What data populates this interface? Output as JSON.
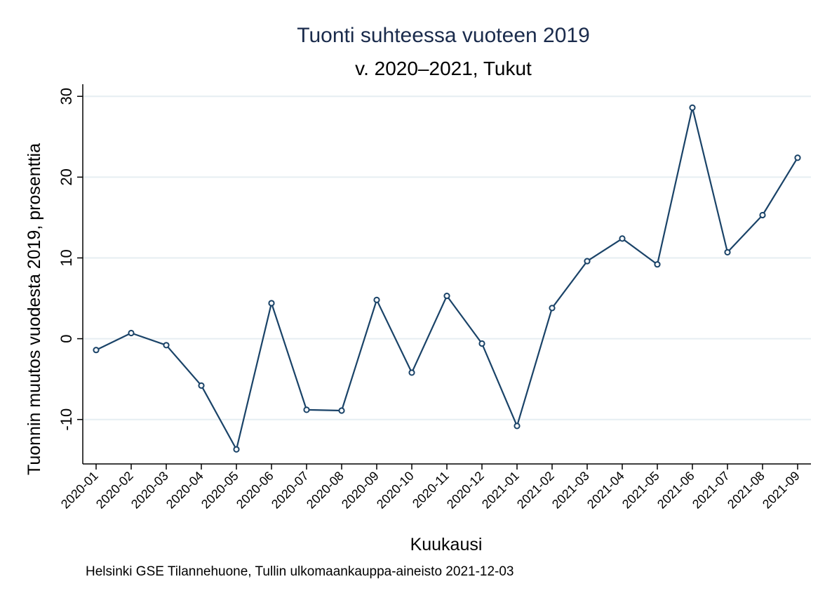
{
  "chart_data": {
    "type": "line",
    "title": "Tuonti suhteessa vuoteen 2019",
    "subtitle": "v. 2020–2021, Tukut",
    "xlabel": "Kuukausi",
    "ylabel": "Tuonnin muutos vuodesta 2019, prosenttia",
    "note": "Helsinki GSE Tilannehuone, Tullin ulkomaankauppa-aineisto 2021-12-03",
    "categories": [
      "2020-01",
      "2020-02",
      "2020-03",
      "2020-04",
      "2020-05",
      "2020-06",
      "2020-07",
      "2020-08",
      "2020-09",
      "2020-10",
      "2020-11",
      "2020-12",
      "2021-01",
      "2021-02",
      "2021-03",
      "2021-04",
      "2021-05",
      "2021-06",
      "2021-07",
      "2021-08",
      "2021-09"
    ],
    "series": [
      {
        "values": [
          -1.4,
          0.7,
          -0.8,
          -5.8,
          -13.7,
          4.4,
          -8.8,
          -8.9,
          4.8,
          -4.2,
          5.3,
          -0.6,
          -10.8,
          3.8,
          9.6,
          12.4,
          9.2,
          28.6,
          10.7,
          15.3,
          22.4
        ]
      }
    ],
    "yticks": [
      -10,
      0,
      10,
      20,
      30
    ],
    "ylim": [
      -15.5,
      31.5
    ],
    "grid": true,
    "colors": {
      "line": "#1a4368",
      "grid": "#e6eef2",
      "title": "#1a2b4c"
    }
  }
}
